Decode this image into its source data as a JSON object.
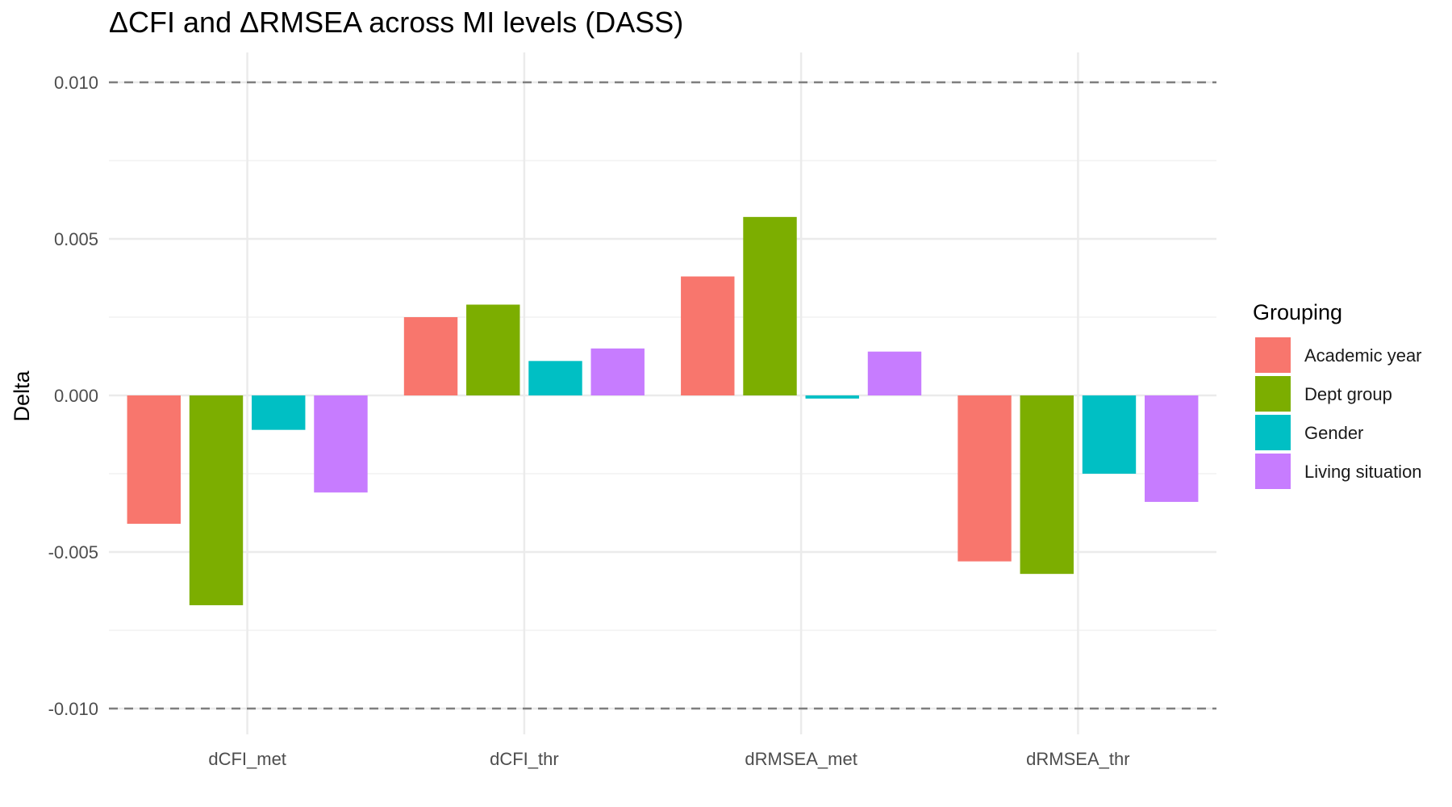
{
  "chart_data": {
    "type": "bar",
    "title": "ΔCFI and ΔRMSEA across MI levels (DASS)",
    "xlabel": "",
    "ylabel": "Delta",
    "categories": [
      "dCFI_met",
      "dCFI_thr",
      "dRMSEA_met",
      "dRMSEA_thr"
    ],
    "series": [
      {
        "name": "Academic year",
        "color": "#F8766D",
        "values": [
          -0.0041,
          0.0025,
          0.0038,
          -0.0053
        ]
      },
      {
        "name": "Dept group",
        "color": "#7CAE00",
        "values": [
          -0.0067,
          0.0029,
          0.0057,
          -0.0057
        ]
      },
      {
        "name": "Gender",
        "color": "#00BFC4",
        "values": [
          -0.0011,
          0.0011,
          -0.0001,
          -0.0025
        ]
      },
      {
        "name": "Living situation",
        "color": "#C77CFF",
        "values": [
          -0.0031,
          0.0015,
          0.0014,
          -0.0034
        ]
      }
    ],
    "ylim": [
      -0.0109,
      0.0109
    ],
    "yticks": [
      -0.01,
      -0.005,
      0,
      0.005,
      0.01
    ],
    "ytick_labels": [
      "-0.010",
      "-0.005",
      "0.000",
      "0.005",
      "0.010"
    ],
    "reference_lines": [
      0.01,
      -0.01
    ],
    "legend": {
      "title": "Grouping",
      "placement": "right"
    },
    "grid": true
  }
}
